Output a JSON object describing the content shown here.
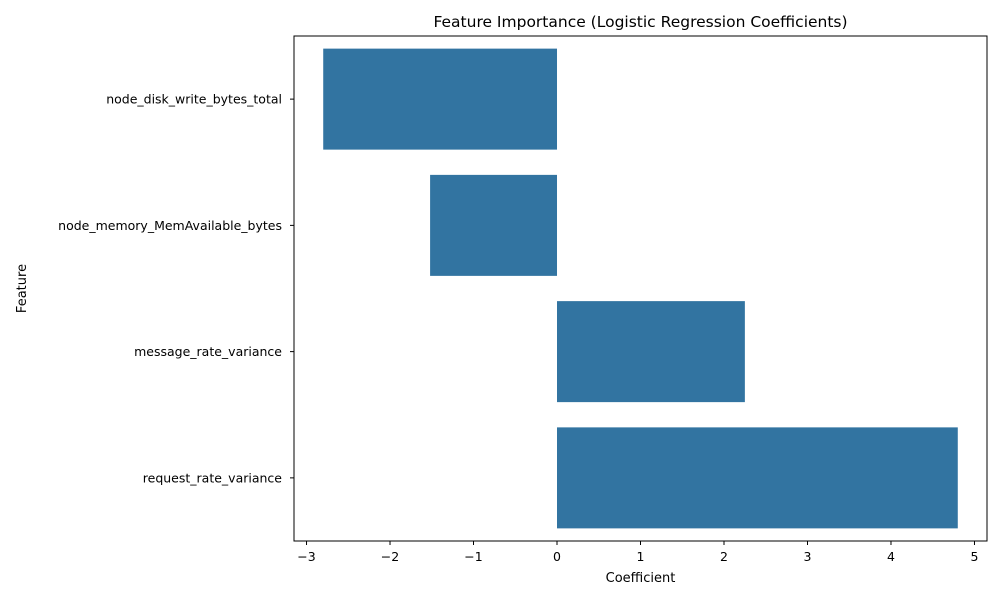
{
  "chart_data": {
    "type": "bar",
    "orientation": "horizontal",
    "title": "Feature Importance (Logistic Regression Coefficients)",
    "xlabel": "Coefficient",
    "ylabel": "Feature",
    "categories": [
      "node_disk_write_bytes_total",
      "node_memory_MemAvailable_bytes",
      "message_rate_variance",
      "request_rate_variance"
    ],
    "values": [
      -2.8,
      -1.52,
      2.25,
      4.8
    ],
    "xlim": [
      -3.15,
      5.15
    ],
    "xticks": [
      -3,
      -2,
      -1,
      0,
      1,
      2,
      3,
      4,
      5
    ],
    "xtick_labels": [
      "−3",
      "−2",
      "−1",
      "0",
      "1",
      "2",
      "3",
      "4",
      "5"
    ],
    "bar_color": "#3274a1",
    "grid": false,
    "legend": "none"
  }
}
